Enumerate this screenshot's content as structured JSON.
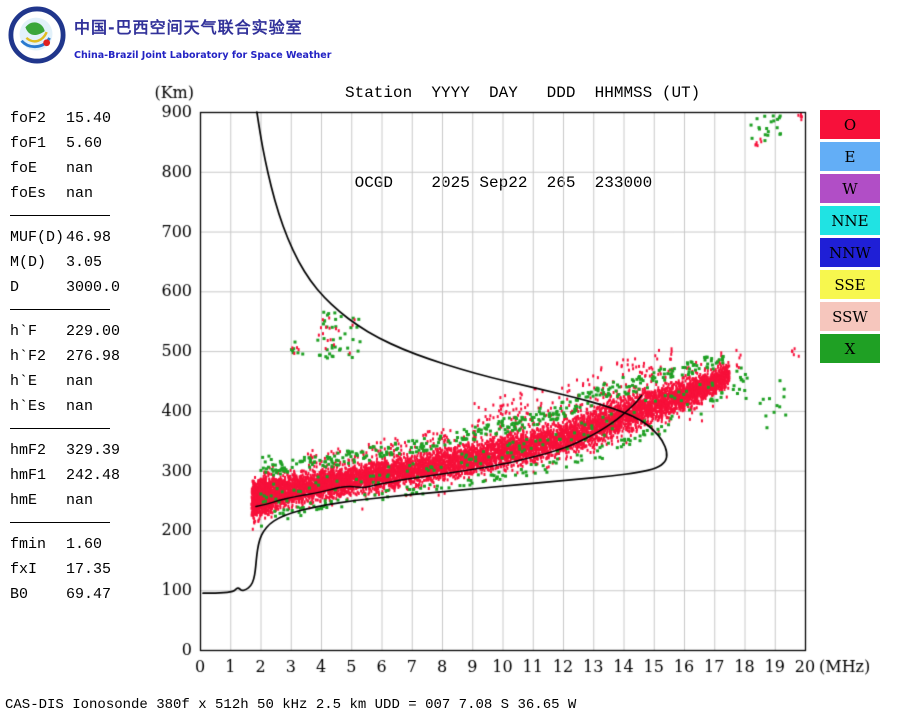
{
  "header": {
    "logo_title_cn": "中国-巴西空间天气联合实验室",
    "logo_subtitle_en": "China-Brazil Joint Laboratory for Space Weather",
    "station_line1": "Station  YYYY  DAY   DDD  HHMMSS (UT)",
    "station_line2": " OCGD    2025 Sep22  265  233000"
  },
  "parameters": {
    "groups": [
      {
        "rows": [
          [
            "foF2",
            "15.40"
          ],
          [
            "foF1",
            "5.60"
          ],
          [
            "foE",
            "nan"
          ],
          [
            "foEs",
            "nan"
          ]
        ]
      },
      {
        "rows": [
          [
            "MUF(D)",
            "46.98"
          ],
          [
            "M(D)",
            "3.05"
          ],
          [
            "D",
            "3000.0"
          ]
        ]
      },
      {
        "rows": [
          [
            "h`F",
            "229.00"
          ],
          [
            "h`F2",
            "276.98"
          ],
          [
            "h`E",
            "nan"
          ],
          [
            "h`Es",
            "nan"
          ]
        ]
      },
      {
        "rows": [
          [
            "hmF2",
            "329.39"
          ],
          [
            "hmF1",
            "242.48"
          ],
          [
            "hmE",
            "nan"
          ]
        ]
      },
      {
        "rows": [
          [
            "fmin",
            "1.60"
          ],
          [
            "fxI",
            "17.35"
          ],
          [
            "B0",
            "69.47"
          ]
        ]
      }
    ]
  },
  "legend": {
    "items": [
      {
        "label": "O",
        "color": "#f7103a"
      },
      {
        "label": "E",
        "color": "#63aef6"
      },
      {
        "label": "W",
        "color": "#b14ec6"
      },
      {
        "label": "NNE",
        "color": "#20e3e3"
      },
      {
        "label": "NNW",
        "color": "#1f1fd6"
      },
      {
        "label": "SSE",
        "color": "#f7f74e"
      },
      {
        "label": "SSW",
        "color": "#f6c6bd"
      },
      {
        "label": "X",
        "color": "#1fa024"
      }
    ]
  },
  "footer": {
    "status_line": "CAS-DIS Ionosonde 380f x 512h 50 kHz 2.5 km UDD = 007 7.08 S 36.65 W"
  },
  "chart_data": {
    "type": "scatter",
    "title": "Ionogram OCGD 2025 Sep22 265 233000 UT",
    "xlabel": "(MHz)",
    "ylabel": "(Km)",
    "xlim": [
      0,
      20
    ],
    "ylim": [
      0,
      900
    ],
    "x_ticks": [
      0,
      1,
      2,
      3,
      4,
      5,
      6,
      7,
      8,
      9,
      10,
      11,
      12,
      13,
      14,
      15,
      16,
      17,
      18,
      19,
      20
    ],
    "y_ticks": [
      0,
      100,
      200,
      300,
      400,
      500,
      600,
      700,
      800,
      900
    ],
    "grid": true,
    "seed": 1234,
    "colors": {
      "o_mode": "#f7103a",
      "x_mode": "#1fa024",
      "grid": "#c8c8c8",
      "frame": "#000000",
      "curve": "#000000"
    },
    "o_mode_trace_segments": [
      {
        "f0": 1.7,
        "f1": 2.4,
        "h0": 250,
        "h1": 262,
        "s": 40,
        "n": 700
      },
      {
        "f0": 2.4,
        "f1": 3.5,
        "h0": 262,
        "h1": 272,
        "s": 33,
        "n": 650
      },
      {
        "f0": 3.5,
        "f1": 5.0,
        "h0": 272,
        "h1": 285,
        "s": 30,
        "n": 750
      },
      {
        "f0": 5.0,
        "f1": 6.5,
        "h0": 285,
        "h1": 297,
        "s": 30,
        "n": 700
      },
      {
        "f0": 6.5,
        "f1": 8.0,
        "h0": 297,
        "h1": 310,
        "s": 30,
        "n": 700
      },
      {
        "f0": 8.0,
        "f1": 9.5,
        "h0": 310,
        "h1": 325,
        "s": 32,
        "n": 650
      },
      {
        "f0": 9.5,
        "f1": 11.0,
        "h0": 325,
        "h1": 342,
        "s": 34,
        "n": 650
      },
      {
        "f0": 11.0,
        "f1": 12.5,
        "h0": 342,
        "h1": 362,
        "s": 36,
        "n": 650
      },
      {
        "f0": 12.5,
        "f1": 14.0,
        "h0": 362,
        "h1": 392,
        "s": 40,
        "n": 700
      },
      {
        "f0": 14.0,
        "f1": 15.5,
        "h0": 392,
        "h1": 418,
        "s": 36,
        "n": 750
      },
      {
        "f0": 15.5,
        "f1": 16.8,
        "h0": 418,
        "h1": 442,
        "s": 32,
        "n": 700
      },
      {
        "f0": 16.8,
        "f1": 17.5,
        "h0": 442,
        "h1": 462,
        "s": 26,
        "n": 300
      }
    ],
    "o_mode_spikes": [
      {
        "f0": 3.5,
        "f1": 8.5,
        "dh0": 15,
        "dh1": 60,
        "n": 120
      },
      {
        "f0": 9.0,
        "f1": 15.6,
        "dh0": 20,
        "dh1": 95,
        "n": 200
      }
    ],
    "x_mode_edge": {
      "f0": 2.0,
      "f1": 17.3,
      "n_top": 380,
      "n_bottom": 140,
      "n_inside": 110
    },
    "clusters": [
      {
        "f0": 3.8,
        "f1": 5.3,
        "h0": 488,
        "h1": 566,
        "n": 40,
        "mode": "X"
      },
      {
        "f0": 3.9,
        "f1": 5.2,
        "h0": 495,
        "h1": 560,
        "n": 16,
        "mode": "O"
      },
      {
        "f0": 2.9,
        "f1": 3.4,
        "h0": 492,
        "h1": 516,
        "n": 7,
        "mode": "X"
      },
      {
        "f0": 3.0,
        "f1": 3.3,
        "h0": 496,
        "h1": 510,
        "n": 4,
        "mode": "O"
      },
      {
        "f0": 18.2,
        "f1": 19.2,
        "h0": 852,
        "h1": 898,
        "n": 20,
        "mode": "X"
      },
      {
        "f0": 18.35,
        "f1": 18.6,
        "h0": 840,
        "h1": 862,
        "n": 6,
        "mode": "O"
      },
      {
        "f0": 19.78,
        "f1": 19.95,
        "h0": 886,
        "h1": 900,
        "n": 5,
        "mode": "O"
      },
      {
        "f0": 17.6,
        "f1": 18.1,
        "h0": 420,
        "h1": 472,
        "n": 14,
        "mode": "X"
      },
      {
        "f0": 18.4,
        "f1": 19.4,
        "h0": 368,
        "h1": 465,
        "n": 12,
        "mode": "X"
      },
      {
        "f0": 19.5,
        "f1": 19.8,
        "h0": 490,
        "h1": 508,
        "n": 5,
        "mode": "O"
      },
      {
        "f0": 17.7,
        "f1": 17.95,
        "h0": 468,
        "h1": 502,
        "n": 6,
        "mode": "O"
      }
    ],
    "hprime_trace_km": [
      [
        1.85,
        240
      ],
      [
        2.2,
        244
      ],
      [
        2.6,
        250
      ],
      [
        3.0,
        255
      ],
      [
        3.4,
        259
      ],
      [
        3.8,
        262
      ],
      [
        4.2,
        267
      ],
      [
        4.6,
        272
      ],
      [
        5.0,
        274
      ],
      [
        5.4,
        271
      ],
      [
        5.8,
        276
      ],
      [
        6.2,
        280
      ],
      [
        6.6,
        284
      ],
      [
        7.0,
        287
      ],
      [
        7.4,
        290
      ],
      [
        7.8,
        293
      ],
      [
        8.2,
        296
      ],
      [
        8.6,
        299
      ],
      [
        9.0,
        302
      ],
      [
        9.4,
        305
      ],
      [
        9.8,
        309
      ],
      [
        10.2,
        313
      ],
      [
        10.6,
        318
      ],
      [
        11.0,
        323
      ],
      [
        11.4,
        328
      ],
      [
        11.8,
        334
      ],
      [
        12.2,
        341
      ],
      [
        12.6,
        350
      ],
      [
        13.0,
        360
      ],
      [
        13.4,
        372
      ],
      [
        13.8,
        386
      ],
      [
        14.1,
        399
      ],
      [
        14.4,
        413
      ],
      [
        14.6,
        426
      ]
    ],
    "muf_boundary_km": [
      [
        1.88,
        900
      ],
      [
        2.0,
        860
      ],
      [
        2.15,
        820
      ],
      [
        2.35,
        775
      ],
      [
        2.6,
        730
      ],
      [
        2.9,
        688
      ],
      [
        3.25,
        650
      ],
      [
        3.65,
        617
      ],
      [
        4.1,
        590
      ],
      [
        4.6,
        566
      ],
      [
        5.2,
        543
      ],
      [
        5.9,
        522
      ],
      [
        6.7,
        503
      ],
      [
        7.6,
        486
      ],
      [
        8.6,
        470
      ],
      [
        9.6,
        456
      ],
      [
        10.6,
        444
      ],
      [
        11.6,
        432
      ],
      [
        12.5,
        421
      ],
      [
        13.3,
        410
      ],
      [
        14.0,
        398
      ],
      [
        14.6,
        384
      ],
      [
        15.0,
        368
      ],
      [
        15.3,
        350
      ],
      [
        15.45,
        330
      ],
      [
        15.4,
        315
      ],
      [
        15.1,
        304
      ],
      [
        14.5,
        297
      ],
      [
        13.6,
        291
      ],
      [
        12.5,
        286
      ],
      [
        11.3,
        280
      ],
      [
        10.0,
        274
      ],
      [
        8.7,
        268
      ],
      [
        7.4,
        262
      ],
      [
        6.2,
        256
      ],
      [
        5.1,
        250
      ],
      [
        4.2,
        243
      ],
      [
        3.5,
        236
      ],
      [
        3.0,
        229
      ],
      [
        2.6,
        221
      ],
      [
        2.3,
        211
      ],
      [
        2.1,
        199
      ],
      [
        1.97,
        185
      ],
      [
        1.9,
        168
      ],
      [
        1.86,
        150
      ],
      [
        1.83,
        133
      ],
      [
        1.78,
        118
      ],
      [
        1.68,
        107
      ],
      [
        1.52,
        101
      ],
      [
        1.38,
        99
      ],
      [
        1.3,
        103
      ],
      [
        1.22,
        104
      ],
      [
        1.15,
        99
      ],
      [
        1.0,
        97
      ],
      [
        0.8,
        96
      ],
      [
        0.5,
        95
      ],
      [
        0.2,
        95
      ],
      [
        0.1,
        95
      ]
    ]
  }
}
